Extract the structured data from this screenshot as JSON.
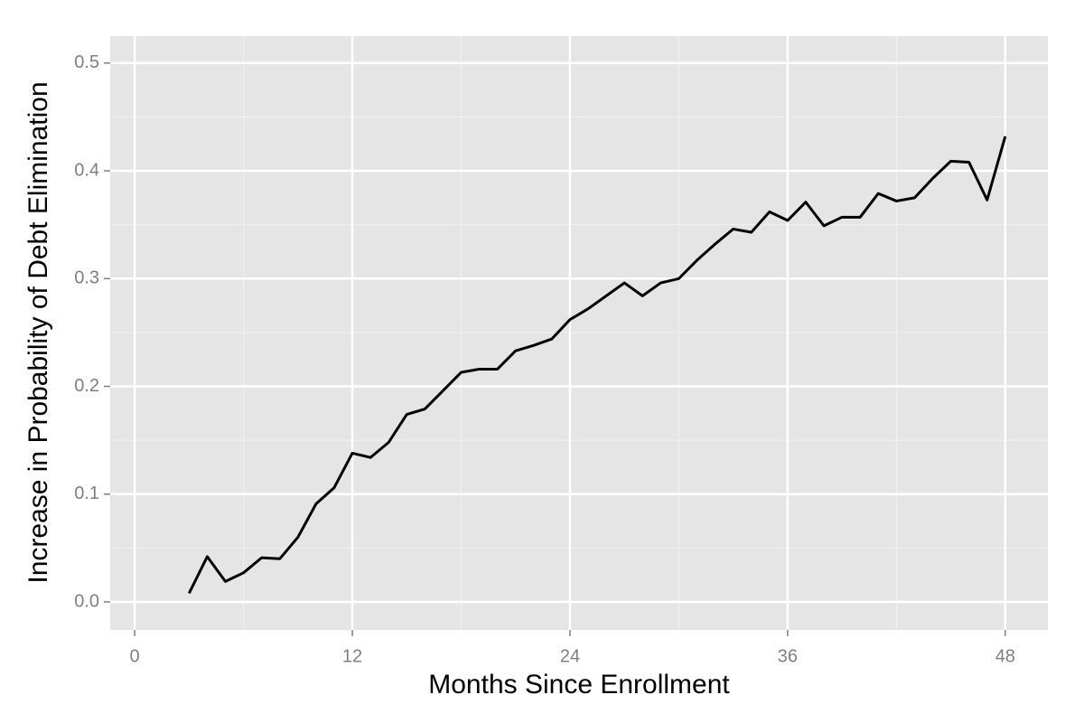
{
  "chart_data": {
    "type": "line",
    "x_label": "Months Since Enrollment",
    "y_label": "Increase in Probability of Debt Elimination",
    "x": [
      3,
      4,
      5,
      6,
      7,
      8,
      9,
      10,
      11,
      12,
      13,
      14,
      15,
      16,
      17,
      18,
      19,
      20,
      21,
      22,
      23,
      24,
      25,
      26,
      27,
      28,
      29,
      30,
      31,
      32,
      33,
      34,
      35,
      36,
      37,
      38,
      39,
      40,
      41,
      42,
      43,
      44,
      45,
      46,
      47,
      48
    ],
    "series": [
      {
        "color": "#000000",
        "values": [
          0.008,
          0.042,
          0.019,
          0.027,
          0.041,
          0.04,
          0.06,
          0.091,
          0.106,
          0.138,
          0.134,
          0.148,
          0.174,
          0.179,
          0.196,
          0.213,
          0.216,
          0.216,
          0.233,
          0.238,
          0.244,
          0.262,
          0.272,
          0.284,
          0.296,
          0.284,
          0.296,
          0.3,
          0.317,
          0.332,
          0.346,
          0.343,
          0.362,
          0.354,
          0.371,
          0.349,
          0.357,
          0.357,
          0.379,
          0.372,
          0.375,
          0.393,
          0.409,
          0.408,
          0.373,
          0.432
        ]
      }
    ],
    "xlim": [
      -1.35,
      50.35
    ],
    "xticks": [
      0,
      12,
      24,
      36,
      48
    ],
    "ylim": [
      -0.026,
      0.525
    ],
    "yticks": [
      {
        "value": 0,
        "label": "0.0"
      },
      0.1,
      0.2,
      0.3,
      0.4,
      0.5
    ],
    "grid": true,
    "background": "#e5e5e5"
  }
}
